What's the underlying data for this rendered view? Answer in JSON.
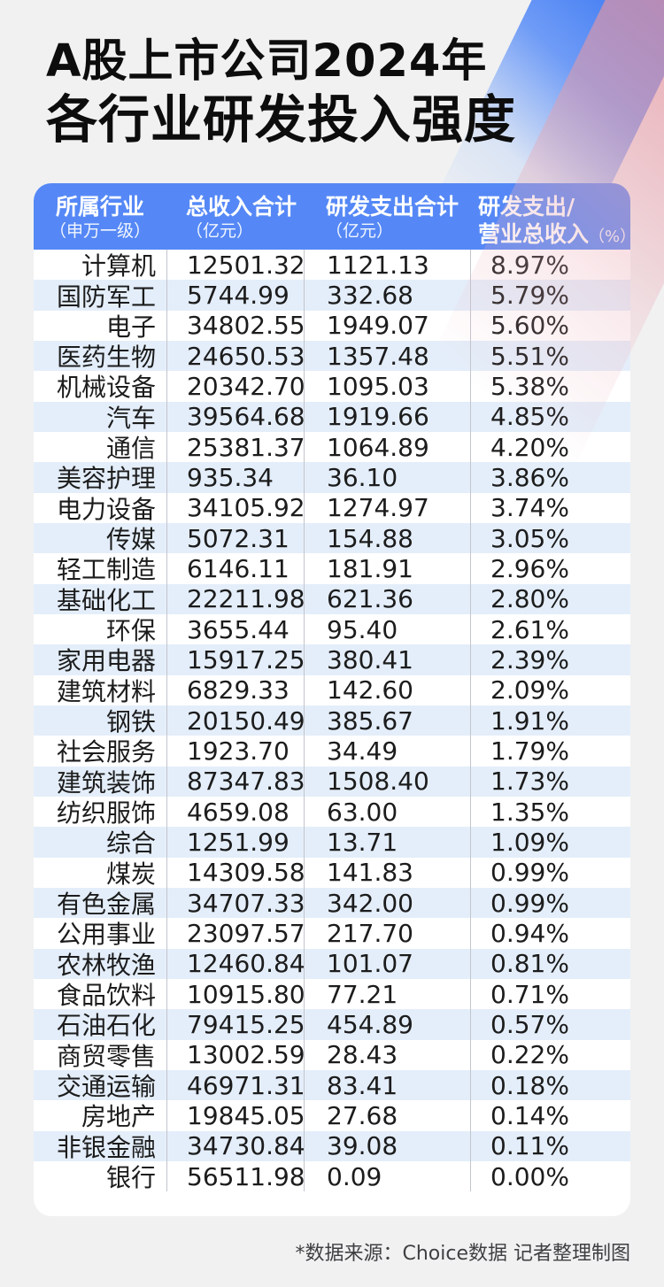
{
  "title": {
    "line1": "A股上市公司2024年",
    "line2": "各行业研发投入强度"
  },
  "table": {
    "header": {
      "col1": {
        "label": "所属行业",
        "sub": "（申万一级）"
      },
      "col2": {
        "label": "总收入合计",
        "sub": "（亿元）"
      },
      "col3": {
        "label": "研发支出合计",
        "sub": "（亿元）"
      },
      "col4": {
        "line1": "研发支出/",
        "line2": "营业总收入",
        "unit": "（%）"
      }
    }
  },
  "footer": {
    "note": "*数据来源：Choice数据 记者整理制图"
  },
  "colors": {
    "page_bg": "#F1F1F2",
    "header_bg": "#5588F6",
    "row_stripe": "#E4EEFA",
    "divider": "#C2C5CC",
    "deco_blue": "#2E6FF1",
    "deco_pink": "#E7909C",
    "text": "#1C1C1C"
  },
  "chart_data": {
    "type": "table",
    "title": "A股上市公司2024年各行业研发投入强度",
    "columns": [
      "所属行业（申万一级）",
      "总收入合计（亿元）",
      "研发支出合计（亿元）",
      "研发支出/营业总收入（%）"
    ],
    "rows": [
      [
        "计算机",
        "12501.32",
        "1121.13",
        "8.97%"
      ],
      [
        "国防军工",
        "5744.99",
        "332.68",
        "5.79%"
      ],
      [
        "电子",
        "34802.55",
        "1949.07",
        "5.60%"
      ],
      [
        "医药生物",
        "24650.53",
        "1357.48",
        "5.51%"
      ],
      [
        "机械设备",
        "20342.70",
        "1095.03",
        "5.38%"
      ],
      [
        "汽车",
        "39564.68",
        "1919.66",
        "4.85%"
      ],
      [
        "通信",
        "25381.37",
        "1064.89",
        "4.20%"
      ],
      [
        "美容护理",
        "935.34",
        "36.10",
        "3.86%"
      ],
      [
        "电力设备",
        "34105.92",
        "1274.97",
        "3.74%"
      ],
      [
        "传媒",
        "5072.31",
        "154.88",
        "3.05%"
      ],
      [
        "轻工制造",
        "6146.11",
        "181.91",
        "2.96%"
      ],
      [
        "基础化工",
        "22211.98",
        "621.36",
        "2.80%"
      ],
      [
        "环保",
        "3655.44",
        "95.40",
        "2.61%"
      ],
      [
        "家用电器",
        "15917.25",
        "380.41",
        "2.39%"
      ],
      [
        "建筑材料",
        "6829.33",
        "142.60",
        "2.09%"
      ],
      [
        "钢铁",
        "20150.49",
        "385.67",
        "1.91%"
      ],
      [
        "社会服务",
        "1923.70",
        "34.49",
        "1.79%"
      ],
      [
        "建筑装饰",
        "87347.83",
        "1508.40",
        "1.73%"
      ],
      [
        "纺织服饰",
        "4659.08",
        "63.00",
        "1.35%"
      ],
      [
        "综合",
        "1251.99",
        "13.71",
        "1.09%"
      ],
      [
        "煤炭",
        "14309.58",
        "141.83",
        "0.99%"
      ],
      [
        "有色金属",
        "34707.33",
        "342.00",
        "0.99%"
      ],
      [
        "公用事业",
        "23097.57",
        "217.70",
        "0.94%"
      ],
      [
        "农林牧渔",
        "12460.84",
        "101.07",
        "0.81%"
      ],
      [
        "食品饮料",
        "10915.80",
        "77.21",
        "0.71%"
      ],
      [
        "石油石化",
        "79415.25",
        "454.89",
        "0.57%"
      ],
      [
        "商贸零售",
        "13002.59",
        "28.43",
        "0.22%"
      ],
      [
        "交通运输",
        "46971.31",
        "83.41",
        "0.18%"
      ],
      [
        "房地产",
        "19845.05",
        "27.68",
        "0.14%"
      ],
      [
        "非银金融",
        "34730.84",
        "39.08",
        "0.11%"
      ],
      [
        "银行",
        "56511.98",
        "0.09",
        "0.00%"
      ]
    ]
  }
}
